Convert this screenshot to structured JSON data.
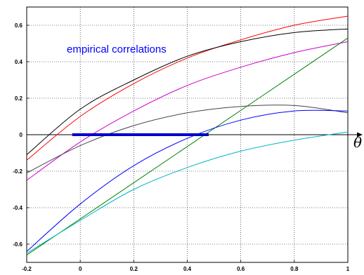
{
  "chart_data": {
    "type": "line",
    "title": "",
    "xlabel": "θ",
    "ylabel": "",
    "xlim": [
      -0.2,
      1.0
    ],
    "ylim": [
      -0.7,
      0.7
    ],
    "x_ticks": [
      -0.2,
      0,
      0.2,
      0.4,
      0.6,
      0.8,
      1
    ],
    "x_tick_labels": [
      "-0.2",
      "0",
      "0.2",
      "0.4",
      "0.6",
      "0.8",
      "1"
    ],
    "y_ticks": [
      -0.6,
      -0.4,
      -0.2,
      0,
      0.2,
      0.4,
      0.6
    ],
    "y_tick_labels": [
      "-0.6",
      "-0.4",
      "-0.2",
      "0",
      "0.2",
      "0.4",
      "0.6"
    ],
    "grid": true,
    "annotation": "empirical correlations",
    "colors": {
      "red": "#ff0000",
      "black": "#000000",
      "magenta": "#cc00cc",
      "green": "#008000",
      "gray": "#444444",
      "blue": "#0000ff",
      "cyan": "#00b4c8",
      "segment": "#0000cc",
      "axis": "#000000",
      "grid": "#000000"
    },
    "series": [
      {
        "color": "red",
        "x": [
          -0.2,
          0,
          0.2,
          0.4,
          0.6,
          0.8,
          1.0
        ],
        "y": [
          -0.14,
          0.1,
          0.28,
          0.42,
          0.52,
          0.6,
          0.65
        ]
      },
      {
        "color": "black",
        "x": [
          -0.2,
          0,
          0.2,
          0.4,
          0.6,
          0.8,
          1.0
        ],
        "y": [
          -0.11,
          0.14,
          0.3,
          0.43,
          0.51,
          0.56,
          0.58
        ]
      },
      {
        "color": "magenta",
        "x": [
          -0.2,
          0,
          0.2,
          0.4,
          0.6,
          0.8,
          1.0
        ],
        "y": [
          -0.25,
          -0.04,
          0.13,
          0.27,
          0.37,
          0.45,
          0.51
        ]
      },
      {
        "color": "green",
        "x": [
          -0.2,
          1.0
        ],
        "y": [
          -0.66,
          0.53
        ]
      },
      {
        "color": "gray",
        "x": [
          -0.2,
          0,
          0.2,
          0.4,
          0.6,
          0.8,
          1.0
        ],
        "y": [
          -0.21,
          -0.06,
          0.05,
          0.12,
          0.155,
          0.16,
          0.12
        ]
      },
      {
        "color": "blue",
        "x": [
          -0.2,
          0,
          0.2,
          0.4,
          0.6,
          0.8,
          1.0
        ],
        "y": [
          -0.64,
          -0.38,
          -0.17,
          -0.02,
          0.08,
          0.13,
          0.13
        ]
      },
      {
        "color": "cyan",
        "x": [
          -0.2,
          0,
          0.2,
          0.4,
          0.6,
          0.8,
          1.0
        ],
        "y": [
          -0.65,
          -0.47,
          -0.3,
          -0.18,
          -0.09,
          -0.03,
          0.015
        ]
      }
    ],
    "segment": {
      "color": "segment",
      "x": [
        -0.03,
        0.48
      ],
      "y": [
        0,
        0
      ]
    }
  }
}
